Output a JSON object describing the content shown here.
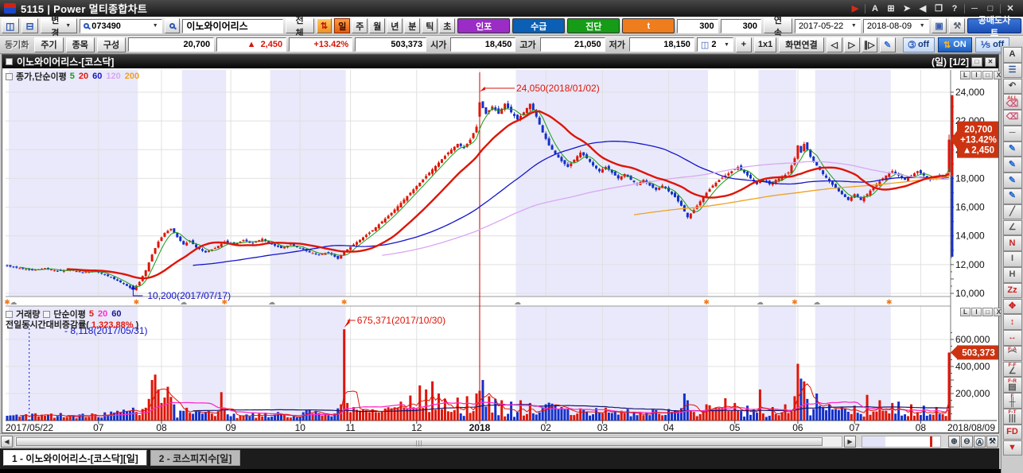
{
  "window": {
    "title": "5115 | Power 멀티종합차트",
    "right_icons": [
      {
        "name": "run-icon",
        "glyph": "▶",
        "color": "#d42a1a"
      },
      {
        "name": "font-icon",
        "glyph": "A"
      },
      {
        "name": "new-window-icon",
        "glyph": "⊞"
      },
      {
        "name": "popout-icon",
        "glyph": "➤"
      },
      {
        "name": "dock-icon",
        "glyph": "◀"
      },
      {
        "name": "cascade-icon",
        "glyph": "❐"
      },
      {
        "name": "help-icon",
        "glyph": "?"
      },
      {
        "name": "minimize-icon",
        "glyph": "─"
      },
      {
        "name": "maximize-icon",
        "glyph": "□"
      },
      {
        "name": "close-icon",
        "glyph": "✕"
      }
    ]
  },
  "toolbar": {
    "change_label": "변경",
    "code": "073490",
    "name": "이노와이어리스",
    "all_label": "전체",
    "periods": [
      "일",
      "주",
      "월",
      "년",
      "분",
      "틱",
      "초"
    ],
    "active_period": "일",
    "features": [
      {
        "label": "인포",
        "color": "#9b2cc6"
      },
      {
        "label": "수급",
        "color": "#0b5fb4"
      },
      {
        "label": "진단",
        "color": "#169c16"
      },
      {
        "label": "t",
        "color": "#ee7d1e"
      }
    ],
    "count1": "300",
    "count2": "300",
    "continuous_label": "연속",
    "date_from": "2017-05-22",
    "date_to": "2018-08-09",
    "short_chart_label": "공매도차트"
  },
  "statusbar": {
    "sync_label": "동기화",
    "buttons": [
      "주기",
      "종목",
      "구성"
    ],
    "price": "20,700",
    "change_arrow": "▲",
    "change": "2,450",
    "change_pct": "+13.42%",
    "volume": "503,373",
    "open_label": "시가",
    "open": "18,450",
    "high_label": "고가",
    "high": "21,050",
    "low_label": "저가",
    "low": "18,150",
    "split_count": "2",
    "plus_label": "+",
    "grid_label": "1x1",
    "screen_link_label": "화면연결",
    "nav": [
      "◁",
      "▷",
      "∥▷"
    ],
    "pen_icon": "✎",
    "toggles": [
      {
        "icon": "➂",
        "label": "off",
        "active": false
      },
      {
        "icon": "⇅",
        "label": "ON",
        "active": true
      },
      {
        "icon": "⅟s",
        "label": "off",
        "active": false
      }
    ]
  },
  "chart": {
    "title": "이노와이어리스-[코스닥]",
    "mode": "(일) [1/2]",
    "panel_buttons": [
      "L",
      "I",
      "□",
      "X"
    ],
    "price_legend": {
      "prefix": "종가,단순이평",
      "items": [
        {
          "label": "5",
          "color": "#169c16"
        },
        {
          "label": "20",
          "color": "#e3170d"
        },
        {
          "label": "60",
          "color": "#1414cc"
        },
        {
          "label": "120",
          "color": "#d9a7f2"
        },
        {
          "label": "200",
          "color": "#f0a020"
        }
      ]
    },
    "volume_legend": {
      "t1": "거래량",
      "t2": "단순이평",
      "items": [
        {
          "label": "5",
          "color": "#e3170d"
        },
        {
          "label": "20",
          "color": "#ff2bc8"
        },
        {
          "label": "60",
          "color": "#18188c"
        }
      ],
      "rate_prefix": "전일동시간대비증감률(",
      "rate_value": " 1,323.88% ",
      "rate_suffix": ")"
    }
  },
  "chart_data": {
    "type": "candlestick+volume",
    "symbol": "이노와이어리스",
    "code": "073490",
    "market": "코스닥",
    "period": "일",
    "date_range": [
      "2017-05-22",
      "2018-08-09"
    ],
    "num_candles": 300,
    "last": {
      "close": 20700,
      "change": 2450,
      "change_pct": "+13.42%",
      "volume": 503373,
      "open": 18450,
      "high": 21050,
      "low": 18150,
      "prev_close": 18250
    },
    "price_badge_lines": [
      "20,700",
      "+13.42%",
      "▲2,450"
    ],
    "volume_badge": "503,373",
    "price_axis_labels": [
      {
        "v": 24000,
        "t": "24,000"
      },
      {
        "v": 22000,
        "t": "22,000"
      },
      {
        "v": 20000,
        "t": "20,000"
      },
      {
        "v": 18000,
        "t": "18,000"
      },
      {
        "v": 16000,
        "t": "16,000"
      },
      {
        "v": 14000,
        "t": "14,000"
      },
      {
        "v": 12000,
        "t": "12,000"
      },
      {
        "v": 10000,
        "t": "10,000"
      }
    ],
    "volume_axis_labels": [
      {
        "v": 600000,
        "t": "600,000"
      },
      {
        "v": 400000,
        "t": "400,000"
      },
      {
        "v": 200000,
        "t": "200,000"
      }
    ],
    "x_ticks": [
      {
        "label": "2017/05/22",
        "i": 0,
        "anchor": "start",
        "grid": false
      },
      {
        "label": "07",
        "i": 29
      },
      {
        "label": "08",
        "i": 49
      },
      {
        "label": "09",
        "i": 71
      },
      {
        "label": "10",
        "i": 93
      },
      {
        "label": "11",
        "i": 109
      },
      {
        "label": "12",
        "i": 130
      },
      {
        "label": "2018",
        "i": 150,
        "bold": true
      },
      {
        "label": "02",
        "i": 171
      },
      {
        "label": "03",
        "i": 189
      },
      {
        "label": "04",
        "i": 210
      },
      {
        "label": "05",
        "i": 231
      },
      {
        "label": "06",
        "i": 251
      },
      {
        "label": "07",
        "i": 269
      },
      {
        "label": "08",
        "i": 290
      },
      {
        "label": "2018/08/09",
        "i": 299,
        "anchor": "end",
        "grid": false
      }
    ],
    "annotations": {
      "price_high": {
        "idx": 150,
        "text": "24,050(2018/01/02)"
      },
      "price_low": {
        "idx": 40,
        "text": "10,200(2017/07/17)"
      },
      "volume_high": {
        "idx": 107,
        "text": "675,371(2017/10/30)"
      },
      "volume_low": {
        "idx": 7,
        "text": "- 8,118(2017/05/31)"
      }
    },
    "bands": [
      [
        1,
        41
      ],
      [
        56,
        69
      ],
      [
        84,
        107
      ],
      [
        162,
        222
      ],
      [
        239,
        250
      ],
      [
        257,
        280
      ]
    ],
    "markers": {
      "gray": [
        2,
        56,
        84,
        162,
        239,
        257
      ],
      "orange": [
        0,
        41,
        69,
        107,
        222,
        250,
        280
      ]
    },
    "close_anchors": [
      [
        0,
        11900
      ],
      [
        4,
        11750
      ],
      [
        8,
        11600
      ],
      [
        12,
        11750
      ],
      [
        16,
        11550
      ],
      [
        20,
        11650
      ],
      [
        24,
        11450
      ],
      [
        28,
        11550
      ],
      [
        31,
        11300
      ],
      [
        34,
        11000
      ],
      [
        37,
        10650
      ],
      [
        40,
        10250
      ],
      [
        42,
        10800
      ],
      [
        44,
        11600
      ],
      [
        46,
        12700
      ],
      [
        48,
        13600
      ],
      [
        50,
        14200
      ],
      [
        52,
        14500
      ],
      [
        54,
        13900
      ],
      [
        56,
        13400
      ],
      [
        58,
        13650
      ],
      [
        60,
        13200
      ],
      [
        63,
        12850
      ],
      [
        66,
        13150
      ],
      [
        69,
        13600
      ],
      [
        72,
        13400
      ],
      [
        75,
        13700
      ],
      [
        78,
        13500
      ],
      [
        81,
        13800
      ],
      [
        84,
        13400
      ],
      [
        87,
        13150
      ],
      [
        90,
        13400
      ],
      [
        93,
        13150
      ],
      [
        96,
        12850
      ],
      [
        99,
        12700
      ],
      [
        102,
        12850
      ],
      [
        105,
        12400
      ],
      [
        107,
        12900
      ],
      [
        110,
        13400
      ],
      [
        113,
        13900
      ],
      [
        116,
        14400
      ],
      [
        119,
        15000
      ],
      [
        122,
        15600
      ],
      [
        125,
        16300
      ],
      [
        128,
        17000
      ],
      [
        131,
        17700
      ],
      [
        134,
        18400
      ],
      [
        137,
        19100
      ],
      [
        140,
        19800
      ],
      [
        143,
        20400
      ],
      [
        145,
        20100
      ],
      [
        147,
        20700
      ],
      [
        149,
        21600
      ],
      [
        150,
        23300
      ],
      [
        152,
        22500
      ],
      [
        154,
        23000
      ],
      [
        156,
        22500
      ],
      [
        158,
        23200
      ],
      [
        160,
        22600
      ],
      [
        162,
        22100
      ],
      [
        164,
        22600
      ],
      [
        166,
        23200
      ],
      [
        168,
        22300
      ],
      [
        170,
        21200
      ],
      [
        172,
        20300
      ],
      [
        174,
        19700
      ],
      [
        176,
        19200
      ],
      [
        178,
        18800
      ],
      [
        180,
        19300
      ],
      [
        182,
        19800
      ],
      [
        184,
        19400
      ],
      [
        186,
        18900
      ],
      [
        188,
        18500
      ],
      [
        190,
        18800
      ],
      [
        192,
        18400
      ],
      [
        194,
        18000
      ],
      [
        196,
        18300
      ],
      [
        198,
        17900
      ],
      [
        200,
        17600
      ],
      [
        202,
        17900
      ],
      [
        204,
        17500
      ],
      [
        206,
        17200
      ],
      [
        208,
        17500
      ],
      [
        210,
        17100
      ],
      [
        212,
        16700
      ],
      [
        214,
        16100
      ],
      [
        216,
        15300
      ],
      [
        218,
        15800
      ],
      [
        220,
        16400
      ],
      [
        222,
        17000
      ],
      [
        224,
        17500
      ],
      [
        226,
        17900
      ],
      [
        228,
        18200
      ],
      [
        230,
        18500
      ],
      [
        232,
        18800
      ],
      [
        234,
        18400
      ],
      [
        236,
        18000
      ],
      [
        238,
        17600
      ],
      [
        240,
        17900
      ],
      [
        242,
        17600
      ],
      [
        244,
        17900
      ],
      [
        246,
        18100
      ],
      [
        248,
        18400
      ],
      [
        250,
        19400
      ],
      [
        251,
        20300
      ],
      [
        252,
        19800
      ],
      [
        253,
        20400
      ],
      [
        254,
        20000
      ],
      [
        255,
        19500
      ],
      [
        257,
        18900
      ],
      [
        259,
        18300
      ],
      [
        261,
        17800
      ],
      [
        263,
        17300
      ],
      [
        265,
        16900
      ],
      [
        267,
        16500
      ],
      [
        269,
        16900
      ],
      [
        271,
        16500
      ],
      [
        273,
        16900
      ],
      [
        275,
        17400
      ],
      [
        277,
        17800
      ],
      [
        279,
        18200
      ],
      [
        281,
        18500
      ],
      [
        283,
        18200
      ],
      [
        285,
        17900
      ],
      [
        287,
        18200
      ],
      [
        289,
        18500
      ],
      [
        291,
        18200
      ],
      [
        293,
        17900
      ],
      [
        295,
        18100
      ],
      [
        298,
        18250
      ],
      [
        299,
        20700
      ]
    ],
    "candle_overrides": {
      "40": {
        "low": 10200
      },
      "150": {
        "open": 22300,
        "high": 24050,
        "low": 21900,
        "close": 23300
      },
      "299": {
        "open": 18450,
        "high": 21050,
        "low": 18150,
        "close": 20700
      }
    },
    "volume_spikes": {
      "7": 8118,
      "44": 95000,
      "45": 160000,
      "46": 300000,
      "47": 340000,
      "48": 230000,
      "49": 130000,
      "50": 170000,
      "51": 250000,
      "52": 175000,
      "53": 120000,
      "68": 210000,
      "105": 90000,
      "106": 120000,
      "107": 675371,
      "108": 130000,
      "110": 100000,
      "125": 140000,
      "128": 185000,
      "131": 260000,
      "133": 230000,
      "135": 290000,
      "137": 200000,
      "139": 160000,
      "143": 170000,
      "146": 180000,
      "149": 200000,
      "150": 220000,
      "151": 300000,
      "153": 180000,
      "155": 160000,
      "157": 150000,
      "160": 140000,
      "163": 150000,
      "166": 130000,
      "171": 120000,
      "176": 100000,
      "182": 90000,
      "190": 95000,
      "197": 85000,
      "205": 80000,
      "210": 85000,
      "215": 200000,
      "216": 150000,
      "222": 120000,
      "228": 165000,
      "231": 130000,
      "235": 110000,
      "239": 230000,
      "243": 100000,
      "247": 120000,
      "250": 180000,
      "251": 420000,
      "252": 310000,
      "253": 290000,
      "254": 160000,
      "257": 200000,
      "261": 120000,
      "265": 100000,
      "269": 110000,
      "273": 190000,
      "277": 150000,
      "281": 130000,
      "283": 140000,
      "287": 120000,
      "291": 110000,
      "295": 100000,
      "299": 503373
    },
    "ma_periods": {
      "price": [
        5,
        20,
        60,
        120,
        200
      ],
      "volume": [
        5,
        20,
        60
      ]
    },
    "colors": {
      "up": "#de1507",
      "down": "#1430c8",
      "ma5": "#169c16",
      "ma20": "#de1507",
      "ma60": "#1414cc",
      "ma120": "#d9a7f2",
      "ma200": "#f0a020",
      "vma5": "#de1507",
      "vma20": "#ff2bc8",
      "vma60": "#16166e",
      "band": "#e9e9fb",
      "grid": "#e0e0e0",
      "badge": "#cc3310",
      "event_line": "#cc0000",
      "annot_red": "#de1507",
      "annot_blue": "#1414cc",
      "marker_orange": "#f07818",
      "marker_gray": "#8d8d8d",
      "axis_text": "#111111"
    }
  },
  "footer": {
    "tabs": [
      {
        "label": "1 - 이노와이어리스-[코스닥][일]",
        "active": true
      },
      {
        "label": "2 - 코스피지수[일]",
        "active": false
      }
    ],
    "scroll_left": "◀",
    "scroll_right": "▶",
    "grip": "|||",
    "zoom_buttons": [
      {
        "name": "zoom-in-icon",
        "glyph": "⊕"
      },
      {
        "name": "zoom-out-icon",
        "glyph": "⊖"
      },
      {
        "name": "zoom-reset-icon",
        "glyph": "Ⓐ"
      },
      {
        "name": "chart-settings-icon",
        "glyph": "⚒"
      }
    ]
  },
  "right_tools": [
    {
      "name": "text-tool-icon",
      "glyph": "A",
      "color": "#333333"
    },
    {
      "name": "indicator-window-icon",
      "glyph": "☰",
      "color": "#335599"
    },
    {
      "name": "undo-icon",
      "glyph": "↶",
      "color": "#444444"
    },
    {
      "name": "erase-all-icon",
      "glyph": "⌫",
      "top": "ALL",
      "color": "#cc5577"
    },
    {
      "name": "eraser-icon",
      "glyph": "⌫",
      "color": "#cc5577"
    },
    {
      "name": "segment-icon",
      "glyph": "─",
      "color": "#555555"
    },
    {
      "name": "pencil-icon",
      "glyph": "✎",
      "color": "#2266cc"
    },
    {
      "name": "pencil-line-icon",
      "glyph": "✎",
      "color": "#2266cc"
    },
    {
      "name": "pencil-flag-icon",
      "glyph": "✎",
      "color": "#2266cc"
    },
    {
      "name": "pencil-fill-icon",
      "glyph": "✎",
      "color": "#2266cc"
    },
    {
      "name": "trendline-icon",
      "glyph": "╱",
      "color": "#555555"
    },
    {
      "name": "angle-line-icon",
      "glyph": "∠",
      "color": "#555555"
    },
    {
      "name": "zigzag-icon",
      "glyph": "N",
      "color": "#cc2222"
    },
    {
      "name": "vertical-range-icon",
      "glyph": "I",
      "color": "#555555"
    },
    {
      "name": "horizontal-line-icon",
      "glyph": "H",
      "color": "#555555"
    },
    {
      "name": "wave-tool-icon",
      "glyph": "Zz",
      "color": "#cc2222"
    },
    {
      "name": "cross-arrow-icon",
      "glyph": "✥",
      "color": "#cc2222"
    },
    {
      "name": "vertical-measure-icon",
      "glyph": "↕",
      "color": "#cc2222"
    },
    {
      "name": "horizontal-measure-icon",
      "glyph": "↔",
      "color": "#cc2222"
    },
    {
      "name": "fibonacci-arc-icon",
      "glyph": "⌒",
      "top": "F-A",
      "color": "#555555"
    },
    {
      "name": "fibonacci-fan-icon",
      "glyph": "∠",
      "top": "F-F",
      "color": "#555555"
    },
    {
      "name": "fibonacci-retracement-icon",
      "glyph": "▤",
      "top": "F-R",
      "color": "#555555"
    },
    {
      "name": "price-histogram-icon",
      "glyph": "╫",
      "top": "F",
      "color": "#555555"
    },
    {
      "name": "fibonacci-time-icon",
      "glyph": "|||",
      "top": "F-T",
      "color": "#555555"
    },
    {
      "name": "fd-tool-icon",
      "glyph": "FD",
      "color": "#cc2222"
    },
    {
      "name": "more-tools-icon",
      "glyph": "▼",
      "color": "#cc2222"
    }
  ]
}
